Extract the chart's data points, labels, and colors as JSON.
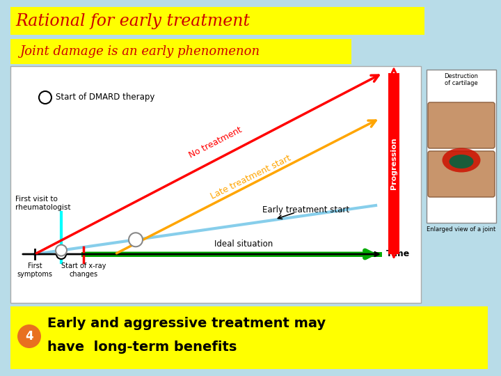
{
  "bg_color": "#b8dce8",
  "title_text": "Rational for early treatment",
  "title_bg": "#ffff00",
  "title_color": "#cc0000",
  "subtitle_text": "Joint damage is an early phenomenon",
  "subtitle_bg": "#ffff00",
  "subtitle_color": "#cc0000",
  "bottom_text_line1": "Early and aggressive treatment may",
  "bottom_text_line2": "have  long-term benefits",
  "bottom_bg": "#ffff00",
  "bottom_color": "#000000",
  "chart_bg": "#ffffff",
  "bullet_number": "4",
  "bullet_color": "#e87020",
  "dmard_label": "Start of DMARD therapy",
  "no_treat_label": "No treatment",
  "late_treat_label": "Late treatment start",
  "early_treat_label": "Early treatment start",
  "ideal_label": "Ideal situation",
  "time_label": "Time",
  "progression_label": "Progression",
  "first_visit_label": "First visit to\nrheumatologist",
  "first_symptoms_label": "First\nsymptoms",
  "xray_label": "Start of x-ray\nchanges",
  "destruction_label": "Destruction\nof cartilage",
  "enlarged_label": "Enlarged view of a joint"
}
